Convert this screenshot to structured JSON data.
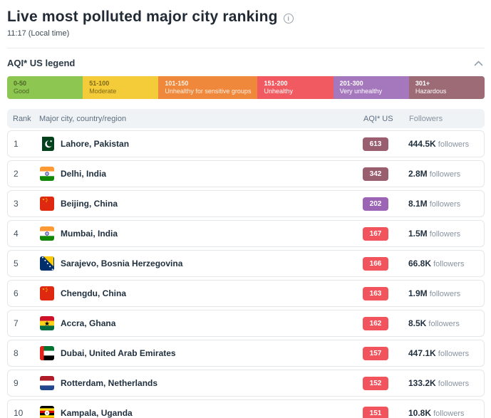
{
  "header": {
    "title": "Live most polluted major city ranking",
    "subtitle": "11:17 (Local time)"
  },
  "legend": {
    "title": "AQI* US legend",
    "items": [
      {
        "range": "0-50",
        "label": "Good",
        "color": "#8dc751",
        "text_color": "#4d6426"
      },
      {
        "range": "51-100",
        "label": "Moderate",
        "color": "#f4cb38",
        "text_color": "#7d691b"
      },
      {
        "range": "101-150",
        "label": "Unhealthy for sensitive groups",
        "color": "#f0883c",
        "text_color": "#fdf0e3"
      },
      {
        "range": "151-200",
        "label": "Unhealthy",
        "color": "#f05a60",
        "text_color": "#ffffff"
      },
      {
        "range": "201-300",
        "label": "Very unhealthy",
        "color": "#a578be",
        "text_color": "#ffffff"
      },
      {
        "range": "301+",
        "label": "Hazardous",
        "color": "#9d6b76",
        "text_color": "#ffffff"
      }
    ]
  },
  "table": {
    "columns": {
      "rank": "Rank",
      "city": "Major city, country/region",
      "aqi": "AQI* US",
      "followers": "Followers"
    },
    "followers_label": "followers",
    "rows": [
      {
        "rank": "1",
        "city": "Lahore, Pakistan",
        "flag": "pakistan",
        "aqi": "613",
        "aqi_color": "#9a5f6e",
        "followers_count": "444.5K"
      },
      {
        "rank": "2",
        "city": "Delhi, India",
        "flag": "india",
        "aqi": "342",
        "aqi_color": "#9a5f6e",
        "followers_count": "2.8M"
      },
      {
        "rank": "3",
        "city": "Beijing, China",
        "flag": "china",
        "aqi": "202",
        "aqi_color": "#9b64b5",
        "followers_count": "8.1M"
      },
      {
        "rank": "4",
        "city": "Mumbai, India",
        "flag": "india",
        "aqi": "167",
        "aqi_color": "#f1545c",
        "followers_count": "1.5M"
      },
      {
        "rank": "5",
        "city": "Sarajevo, Bosnia Herzegovina",
        "flag": "bosnia",
        "aqi": "166",
        "aqi_color": "#f1545c",
        "followers_count": "66.8K"
      },
      {
        "rank": "6",
        "city": "Chengdu, China",
        "flag": "china",
        "aqi": "163",
        "aqi_color": "#f1545c",
        "followers_count": "1.9M"
      },
      {
        "rank": "7",
        "city": "Accra, Ghana",
        "flag": "ghana",
        "aqi": "162",
        "aqi_color": "#f1545c",
        "followers_count": "8.5K"
      },
      {
        "rank": "8",
        "city": "Dubai, United Arab Emirates",
        "flag": "uae",
        "aqi": "157",
        "aqi_color": "#f1545c",
        "followers_count": "447.1K"
      },
      {
        "rank": "9",
        "city": "Rotterdam, Netherlands",
        "flag": "netherlands",
        "aqi": "152",
        "aqi_color": "#f1545c",
        "followers_count": "133.2K"
      },
      {
        "rank": "10",
        "city": "Kampala, Uganda",
        "flag": "uganda",
        "aqi": "151",
        "aqi_color": "#f1545c",
        "followers_count": "10.8K"
      }
    ]
  }
}
